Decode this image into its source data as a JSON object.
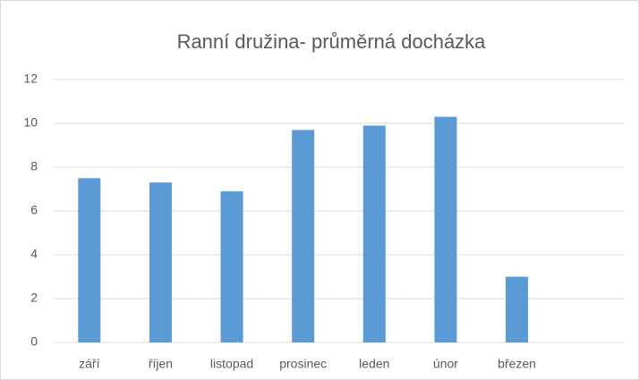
{
  "chart_data": {
    "type": "bar",
    "title": "Ranní družina- průměrná docházka",
    "categories": [
      "září",
      "říjen",
      "listopad",
      "prosinec",
      "leden",
      "únor",
      "březen",
      null
    ],
    "values": [
      7.5,
      7.3,
      6.9,
      9.7,
      9.9,
      10.3,
      3.0,
      null
    ],
    "color": "#5b9bd5",
    "ylim": [
      0,
      12
    ],
    "yticks": [
      0,
      2,
      4,
      6,
      8,
      10,
      12
    ],
    "grid": true
  }
}
